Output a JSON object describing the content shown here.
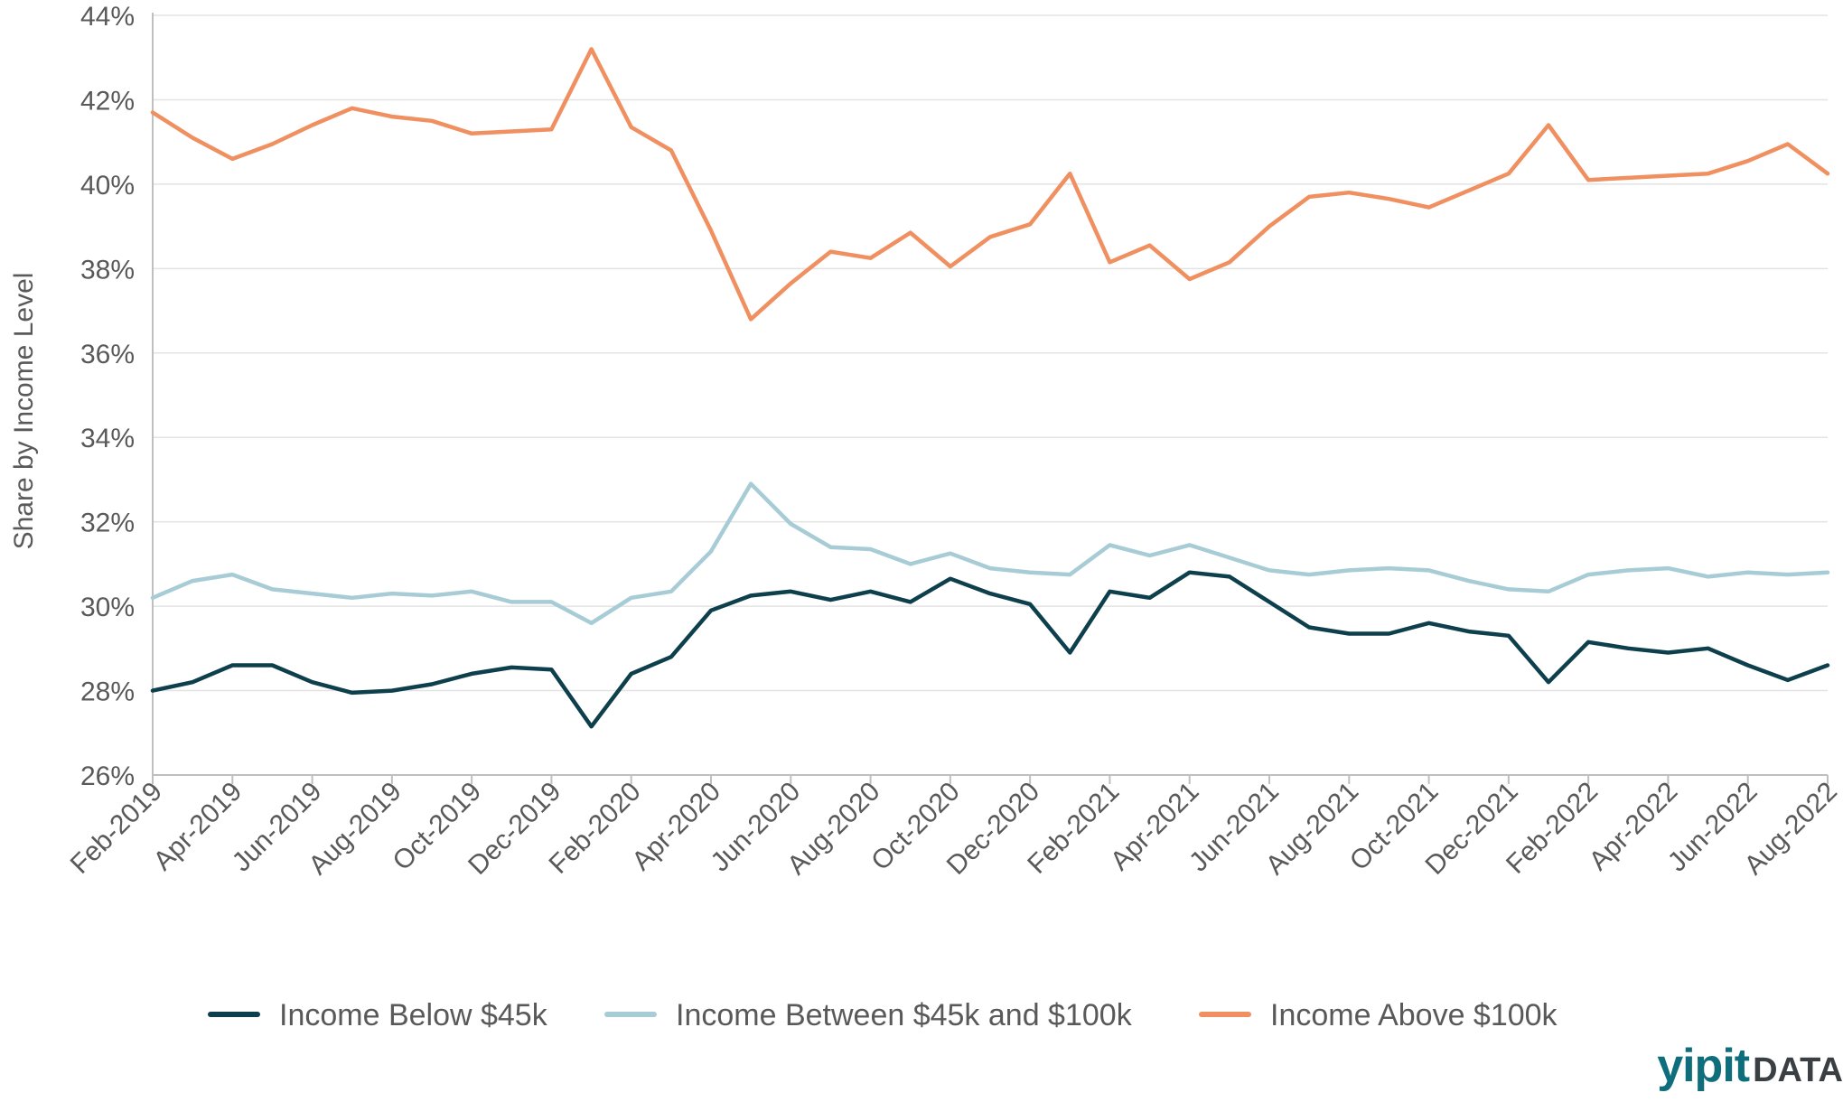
{
  "chart_data": {
    "type": "line",
    "title": "",
    "xlabel": "",
    "ylabel": "Share by Income Level",
    "ylim": [
      26,
      44
    ],
    "y_ticks": [
      "26%",
      "28%",
      "30%",
      "32%",
      "34%",
      "36%",
      "38%",
      "40%",
      "42%",
      "44%"
    ],
    "grid": true,
    "legend_position": "bottom",
    "x": [
      "Feb-2019",
      "Mar-2019",
      "Apr-2019",
      "May-2019",
      "Jun-2019",
      "Jul-2019",
      "Aug-2019",
      "Sep-2019",
      "Oct-2019",
      "Nov-2019",
      "Dec-2019",
      "Jan-2020",
      "Feb-2020",
      "Mar-2020",
      "Apr-2020",
      "May-2020",
      "Jun-2020",
      "Jul-2020",
      "Aug-2020",
      "Sep-2020",
      "Oct-2020",
      "Nov-2020",
      "Dec-2020",
      "Jan-2021",
      "Feb-2021",
      "Mar-2021",
      "Apr-2021",
      "May-2021",
      "Jun-2021",
      "Jul-2021",
      "Aug-2021",
      "Sep-2021",
      "Oct-2021",
      "Nov-2021",
      "Dec-2021",
      "Jan-2022",
      "Feb-2022",
      "Mar-2022",
      "Apr-2022",
      "May-2022",
      "Jun-2022",
      "Jul-2022",
      "Aug-2022"
    ],
    "x_tick_labels": [
      "Feb-2019",
      "Apr-2019",
      "Jun-2019",
      "Aug-2019",
      "Oct-2019",
      "Dec-2019",
      "Feb-2020",
      "Apr-2020",
      "Jun-2020",
      "Aug-2020",
      "Oct-2020",
      "Dec-2020",
      "Feb-2021",
      "Apr-2021",
      "Jun-2021",
      "Aug-2021",
      "Oct-2021",
      "Dec-2021",
      "Feb-2022",
      "Apr-2022",
      "Jun-2022",
      "Aug-2022"
    ],
    "series": [
      {
        "name": "Income Below $45k",
        "color": "#0d3f4c",
        "values": [
          28.0,
          28.2,
          28.6,
          28.6,
          28.2,
          27.95,
          28.0,
          28.15,
          28.4,
          28.55,
          28.5,
          27.15,
          28.4,
          28.8,
          29.9,
          30.25,
          30.35,
          30.15,
          30.35,
          30.1,
          30.65,
          30.3,
          30.05,
          28.9,
          30.35,
          30.2,
          30.8,
          30.7,
          30.1,
          29.5,
          29.35,
          29.35,
          29.6,
          29.4,
          29.3,
          28.2,
          29.15,
          29.0,
          28.9,
          29.0,
          28.6,
          28.25,
          28.6
        ]
      },
      {
        "name": "Income Between $45k and $100k",
        "color": "#a8ccd6",
        "values": [
          30.2,
          30.6,
          30.75,
          30.4,
          30.3,
          30.2,
          30.3,
          30.25,
          30.35,
          30.1,
          30.1,
          29.6,
          30.2,
          30.35,
          31.3,
          32.9,
          31.95,
          31.4,
          31.35,
          31.0,
          31.25,
          30.9,
          30.8,
          30.75,
          31.45,
          31.2,
          31.45,
          31.15,
          30.85,
          30.75,
          30.85,
          30.9,
          30.85,
          30.6,
          30.4,
          30.35,
          30.75,
          30.85,
          30.9,
          30.7,
          30.8,
          30.75,
          30.8
        ]
      },
      {
        "name": "Income Above $100k",
        "color": "#f09060",
        "values": [
          41.7,
          41.1,
          40.6,
          40.95,
          41.4,
          41.8,
          41.6,
          41.5,
          41.2,
          41.25,
          41.3,
          43.2,
          41.35,
          40.8,
          38.9,
          36.8,
          37.65,
          38.4,
          38.25,
          38.85,
          38.05,
          38.75,
          39.05,
          40.25,
          38.15,
          38.55,
          37.75,
          38.15,
          39.0,
          39.7,
          39.8,
          39.65,
          39.45,
          39.85,
          40.25,
          41.4,
          40.1,
          40.15,
          40.2,
          40.25,
          40.55,
          40.95,
          40.25
        ]
      }
    ]
  },
  "logo": {
    "part1": "yipit",
    "part2": "DATA"
  }
}
